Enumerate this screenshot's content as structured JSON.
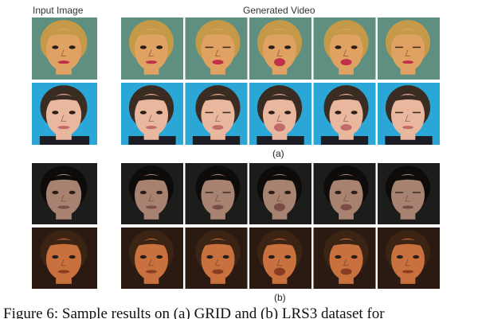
{
  "headers": {
    "input": "Input Image",
    "generated": "Generated Video"
  },
  "panels": [
    {
      "label": "(a)",
      "dataset": "GRID",
      "rows": [
        {
          "subject": "woman-blonde",
          "background": "#5f8f80",
          "frames": 5
        },
        {
          "subject": "man-dark-hair",
          "background": "#2aa7d6",
          "frames": 5
        }
      ]
    },
    {
      "label": "(b)",
      "dataset": "LRS3",
      "rows": [
        {
          "subject": "woman-dark-hair",
          "background": "#1c1c1a",
          "frames": 5
        },
        {
          "subject": "man-orange-lit",
          "background": "#2a1a12",
          "frames": 5
        }
      ]
    }
  ],
  "caption": "Figure 6: Sample results on (a) GRID and (b) LRS3 dataset for"
}
